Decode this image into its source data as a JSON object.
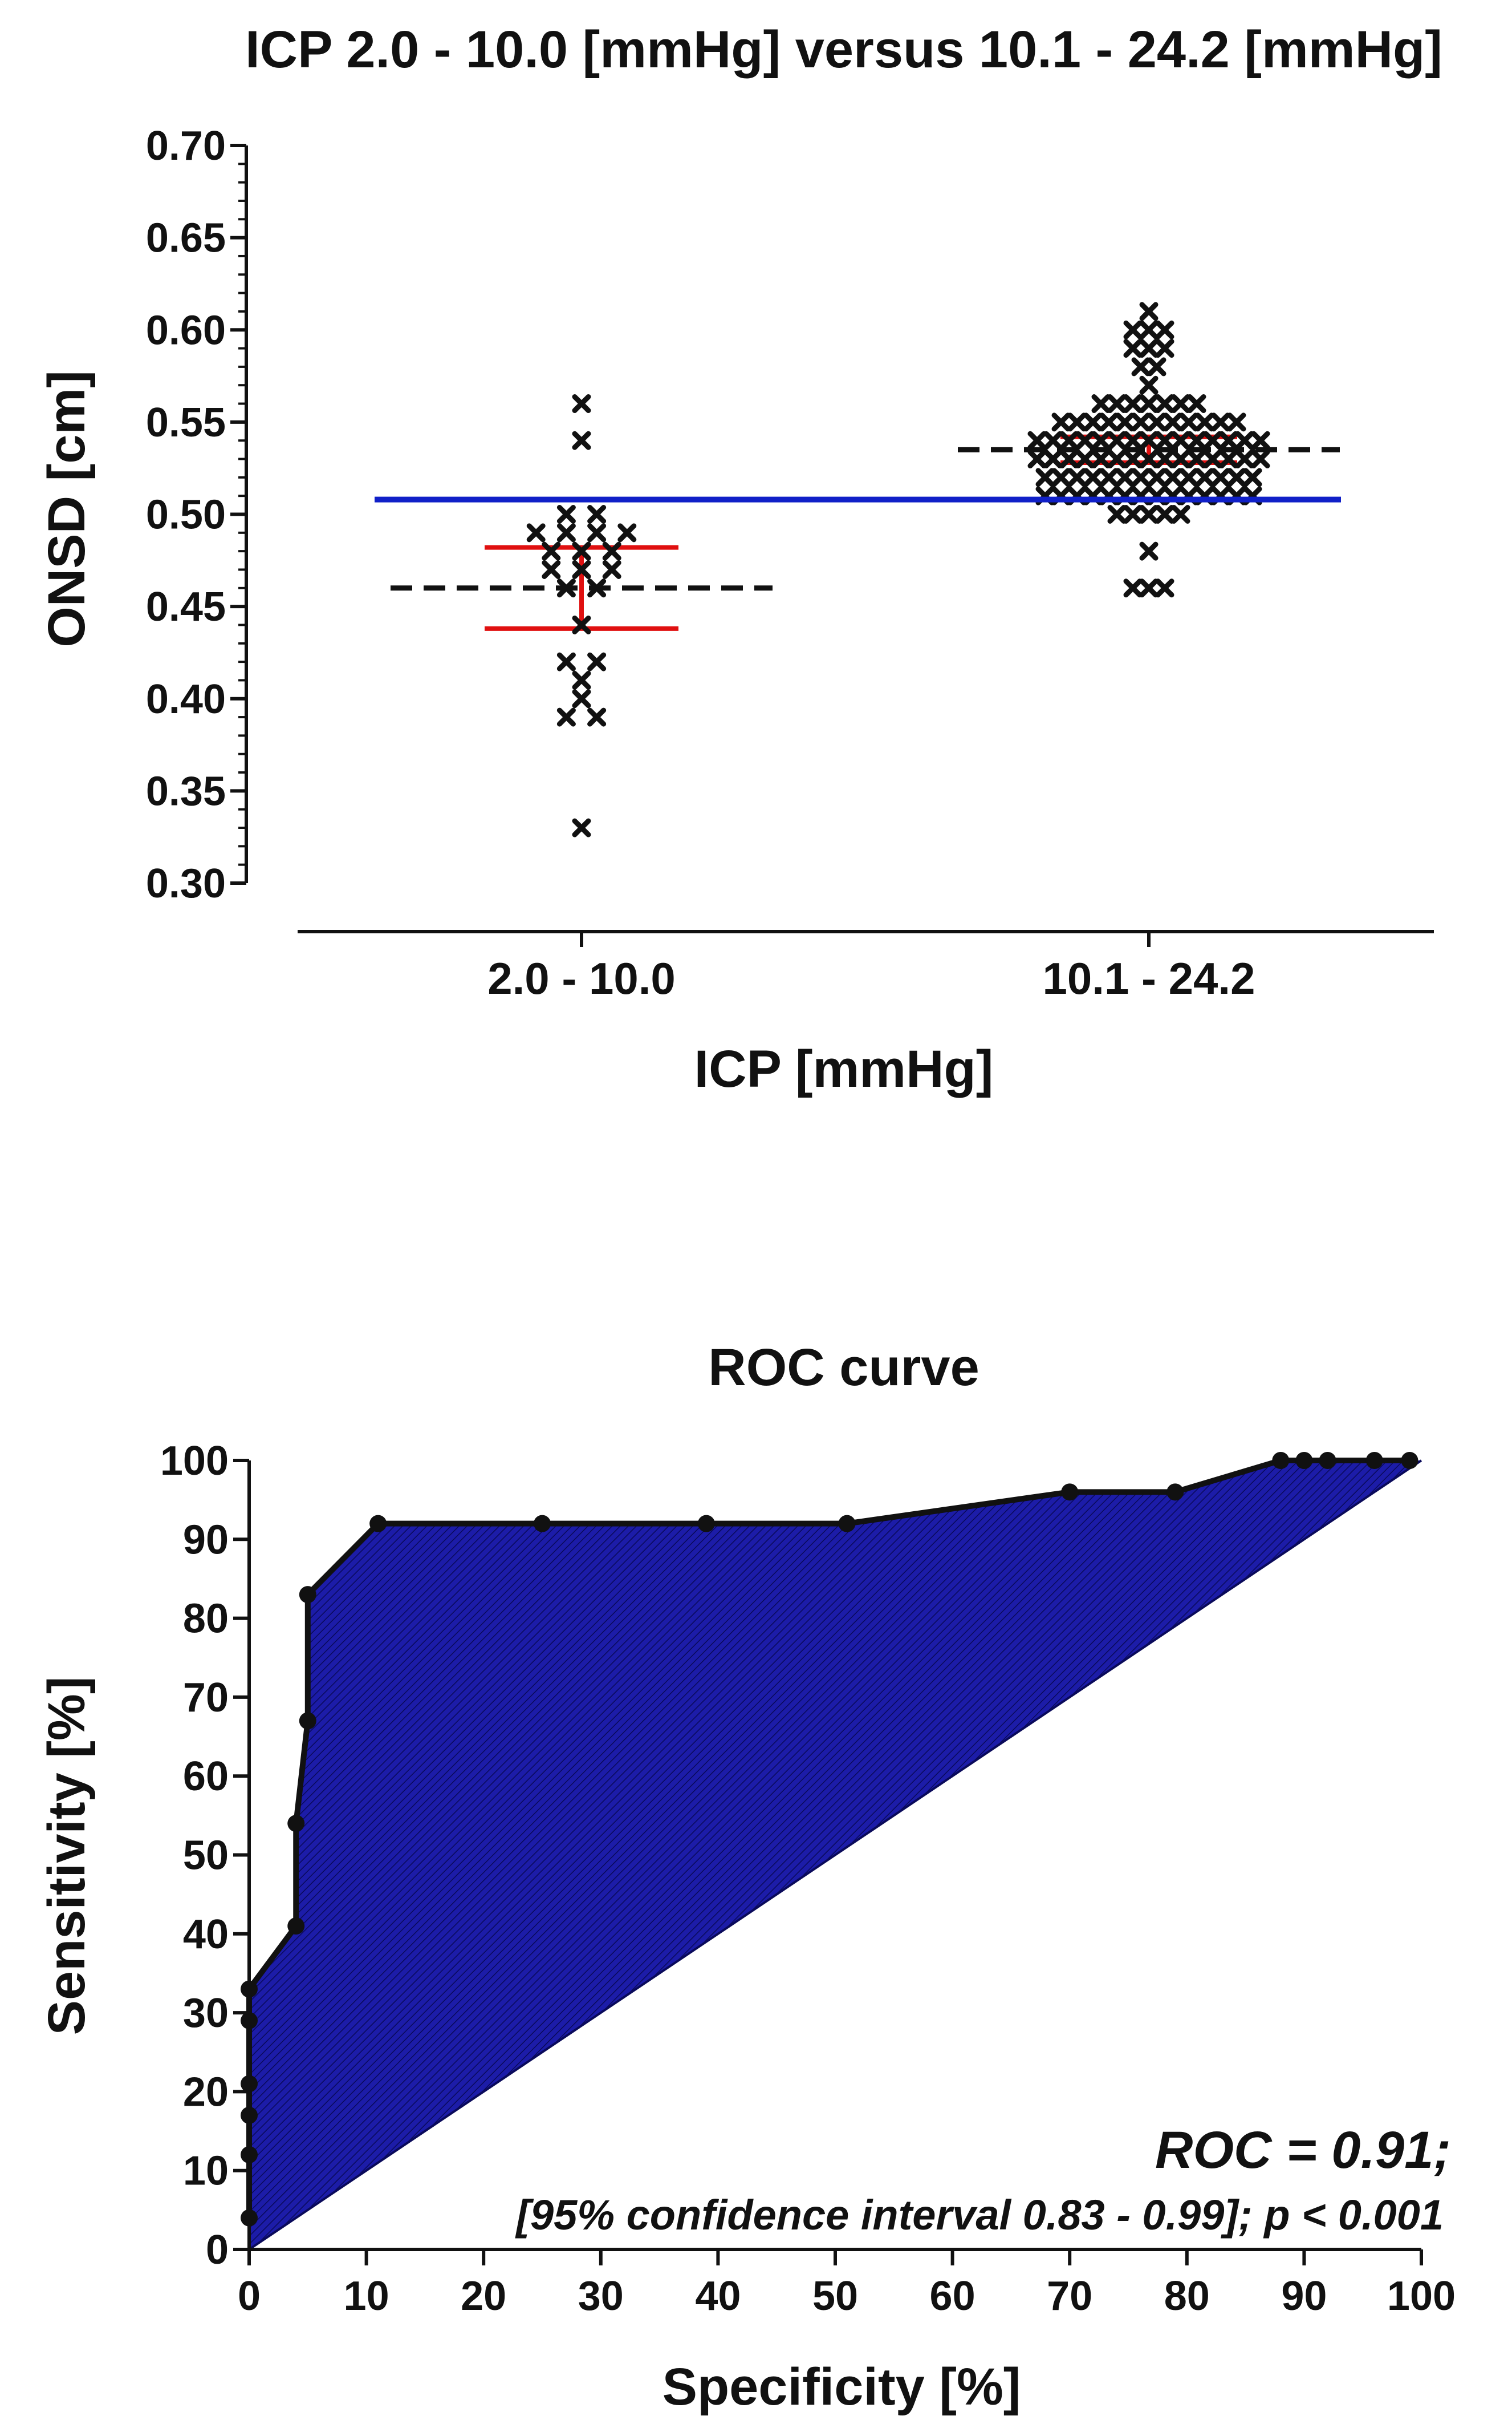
{
  "chart_data": [
    {
      "type": "scatter",
      "title": "ICP 2.0 - 10.0 [mmHg] versus 10.1 - 24.2 [mmHg]",
      "xlabel": "ICP [mmHg]",
      "ylabel": "ONSD [cm]",
      "ylim": [
        0.3,
        0.7
      ],
      "yticks": [
        "0.30",
        "0.35",
        "0.40",
        "0.45",
        "0.50",
        "0.55",
        "0.60",
        "0.65",
        "0.70"
      ],
      "categories": [
        "2.0 - 10.0",
        "10.1 - 24.2"
      ],
      "cutoff_line": {
        "value": 0.508,
        "color": "#1020c8"
      },
      "series": [
        {
          "name": "2.0 - 10.0",
          "median": 0.46,
          "iqr": [
            0.438,
            0.482
          ],
          "values": [
            0.56,
            0.54,
            0.5,
            0.5,
            0.49,
            0.49,
            0.49,
            0.49,
            0.48,
            0.48,
            0.48,
            0.47,
            0.47,
            0.47,
            0.46,
            0.46,
            0.44,
            0.42,
            0.42,
            0.41,
            0.4,
            0.39,
            0.39,
            0.33
          ]
        },
        {
          "name": "10.1 - 24.2",
          "median": 0.535,
          "iqr": [
            0.528,
            0.542
          ],
          "values": [
            0.61,
            0.6,
            0.6,
            0.6,
            0.59,
            0.59,
            0.59,
            0.58,
            0.58,
            0.57,
            0.56,
            0.56,
            0.56,
            0.56,
            0.56,
            0.56,
            0.56,
            0.55,
            0.55,
            0.55,
            0.55,
            0.55,
            0.55,
            0.55,
            0.55,
            0.55,
            0.55,
            0.55,
            0.55,
            0.54,
            0.54,
            0.54,
            0.54,
            0.54,
            0.54,
            0.54,
            0.54,
            0.54,
            0.54,
            0.54,
            0.54,
            0.54,
            0.54,
            0.54,
            0.53,
            0.53,
            0.53,
            0.53,
            0.53,
            0.53,
            0.53,
            0.53,
            0.53,
            0.53,
            0.53,
            0.53,
            0.53,
            0.53,
            0.53,
            0.52,
            0.52,
            0.52,
            0.52,
            0.52,
            0.52,
            0.52,
            0.52,
            0.52,
            0.52,
            0.52,
            0.52,
            0.52,
            0.52,
            0.51,
            0.51,
            0.51,
            0.51,
            0.51,
            0.51,
            0.51,
            0.51,
            0.51,
            0.51,
            0.51,
            0.51,
            0.51,
            0.51,
            0.5,
            0.5,
            0.5,
            0.5,
            0.5,
            0.48,
            0.46,
            0.46,
            0.46
          ]
        }
      ],
      "summary_line_colors": {
        "median": "#111111",
        "iqr": "#e01010"
      }
    },
    {
      "type": "area",
      "title": "ROC curve",
      "xlabel": "Specificity [%]",
      "ylabel": "Sensitivity [%]",
      "xlim": [
        0,
        100
      ],
      "ylim": [
        0,
        100
      ],
      "xticks": [
        "0",
        "10",
        "20",
        "30",
        "40",
        "50",
        "60",
        "70",
        "80",
        "90",
        "100"
      ],
      "yticks": [
        "0",
        "10",
        "20",
        "30",
        "40",
        "50",
        "60",
        "70",
        "80",
        "90",
        "100"
      ],
      "fill_color": "#1c1ca8",
      "points": [
        [
          0,
          4
        ],
        [
          0,
          12
        ],
        [
          0,
          17
        ],
        [
          0,
          21
        ],
        [
          0,
          29
        ],
        [
          0,
          33
        ],
        [
          4,
          41
        ],
        [
          4,
          54
        ],
        [
          5,
          67
        ],
        [
          5,
          83
        ],
        [
          11,
          92
        ],
        [
          25,
          92
        ],
        [
          39,
          92
        ],
        [
          51,
          92
        ],
        [
          70,
          96
        ],
        [
          79,
          96
        ],
        [
          88,
          100
        ],
        [
          90,
          100
        ],
        [
          92,
          100
        ],
        [
          96,
          100
        ],
        [
          99,
          100
        ]
      ],
      "annotation_auc": "ROC = 0.91;",
      "annotation_ci": "[95% confidence interval 0.83 - 0.99]; p < 0.001"
    }
  ]
}
